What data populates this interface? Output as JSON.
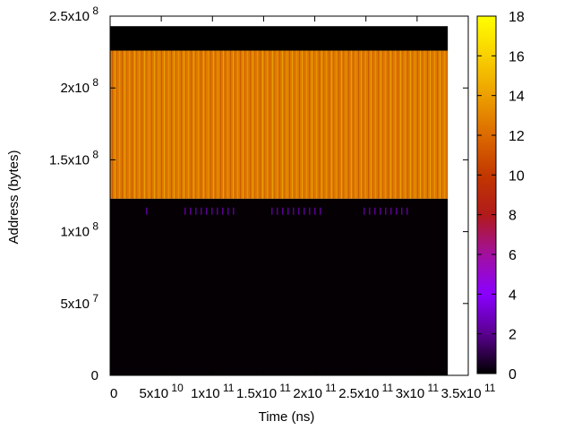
{
  "chart_data": {
    "type": "heatmap",
    "xlabel": "Time (ns)",
    "ylabel": "Address (bytes)",
    "xlim": [
      0,
      350000000000
    ],
    "ylim": [
      0,
      250000000
    ],
    "x_ticks": [
      {
        "value": 0,
        "mantissa": "0",
        "exponent": ""
      },
      {
        "value": 50000000000,
        "mantissa": "5x10",
        "exponent": "10"
      },
      {
        "value": 100000000000,
        "mantissa": "1x10",
        "exponent": "11"
      },
      {
        "value": 150000000000,
        "mantissa": "1.5x10",
        "exponent": "11"
      },
      {
        "value": 200000000000,
        "mantissa": "2x10",
        "exponent": "11"
      },
      {
        "value": 250000000000,
        "mantissa": "2.5x10",
        "exponent": "11"
      },
      {
        "value": 300000000000,
        "mantissa": "3x10",
        "exponent": "11"
      },
      {
        "value": 350000000000,
        "mantissa": "3.5x10",
        "exponent": "11"
      }
    ],
    "y_ticks": [
      {
        "value": 0,
        "mantissa": "0",
        "exponent": ""
      },
      {
        "value": 50000000,
        "mantissa": "5x10",
        "exponent": "7"
      },
      {
        "value": 100000000,
        "mantissa": "1x10",
        "exponent": "8"
      },
      {
        "value": 150000000,
        "mantissa": "1.5x10",
        "exponent": "8"
      },
      {
        "value": 200000000,
        "mantissa": "2x10",
        "exponent": "8"
      },
      {
        "value": 250000000,
        "mantissa": "2.5x10",
        "exponent": "8"
      }
    ],
    "colorbar": {
      "range": [
        0,
        18
      ],
      "ticks": [
        "0",
        "2",
        "4",
        "6",
        "8",
        "10",
        "12",
        "14",
        "16",
        "18"
      ],
      "palette": [
        "#000000",
        "#5a008f",
        "#8a00ff",
        "#a2109f",
        "#b11a1a",
        "#c23800",
        "#dc6a00",
        "#ec9f00",
        "#f9d000",
        "#ffff00"
      ]
    },
    "data_x_extent": [
      0,
      330000000000
    ],
    "regions": [
      {
        "y_range": [
          0,
          123000000
        ],
        "value": 0.3,
        "color": "#050004"
      },
      {
        "y_range": [
          123000000,
          226000000
        ],
        "value": 13.3,
        "color": "#dd7a00"
      },
      {
        "y_range": [
          226000000,
          243000000
        ],
        "value": 0.1,
        "color": "#000000"
      }
    ]
  }
}
